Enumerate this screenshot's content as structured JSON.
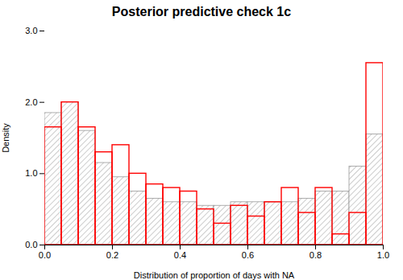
{
  "chart_data": {
    "type": "histogram",
    "title": "Posterior predictive check 1c",
    "xlabel": "Distribution of proportion of days with NA",
    "ylabel": "Density",
    "bins": [
      0.0,
      0.05,
      0.1,
      0.15,
      0.2,
      0.25,
      0.3,
      0.35,
      0.4,
      0.45,
      0.5,
      0.55,
      0.6,
      0.65,
      0.7,
      0.75,
      0.8,
      0.85,
      0.9,
      0.95,
      1.0
    ],
    "series": [
      {
        "color": "#999999",
        "values": [
          1.85,
          2.0,
          1.6,
          1.15,
          0.95,
          0.75,
          0.65,
          0.6,
          0.6,
          0.55,
          0.55,
          0.6,
          0.6,
          0.6,
          0.6,
          0.65,
          0.75,
          0.75,
          1.1,
          1.55
        ]
      },
      {
        "color": "#ff0000",
        "values": [
          1.65,
          2.0,
          1.65,
          1.3,
          1.4,
          1.0,
          0.85,
          0.8,
          0.75,
          0.5,
          0.3,
          0.55,
          0.4,
          0.6,
          0.8,
          0.45,
          0.8,
          0.15,
          0.45,
          2.55
        ]
      }
    ],
    "xlim": [
      0.0,
      1.0
    ],
    "ylim": [
      0,
      3.0
    ],
    "xticks": [
      {
        "value": 0.0,
        "label": "0.0"
      },
      0.2,
      0.4,
      0.6,
      0.8,
      {
        "value": 1.0,
        "label": "1.0"
      }
    ],
    "yticks": [
      {
        "value": 0.0,
        "label": "0.0"
      },
      {
        "value": 1.0,
        "label": "1.0"
      },
      {
        "value": 2.0,
        "label": "2.0"
      },
      {
        "value": 3.0,
        "label": "3.0"
      }
    ],
    "grid": false
  }
}
